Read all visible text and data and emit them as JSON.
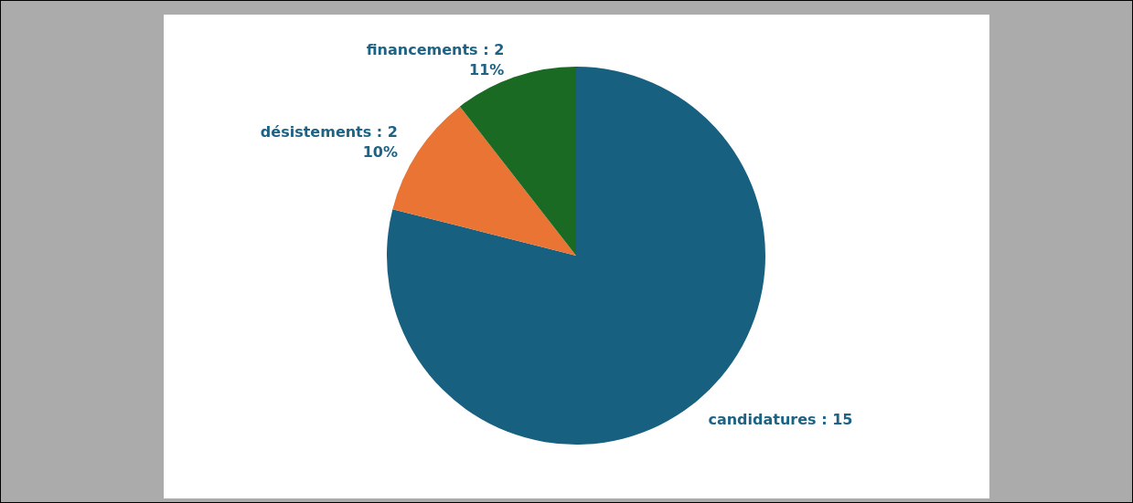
{
  "chart_data": {
    "type": "pie",
    "categories": [
      "candidatures",
      "désistements",
      "financements"
    ],
    "values": [
      15,
      2,
      2
    ],
    "colors": [
      "#17607f",
      "#e97434",
      "#1b6a23"
    ],
    "value_labels": [
      ": 15",
      ": 2\n10%",
      ": 2\n11%"
    ]
  }
}
